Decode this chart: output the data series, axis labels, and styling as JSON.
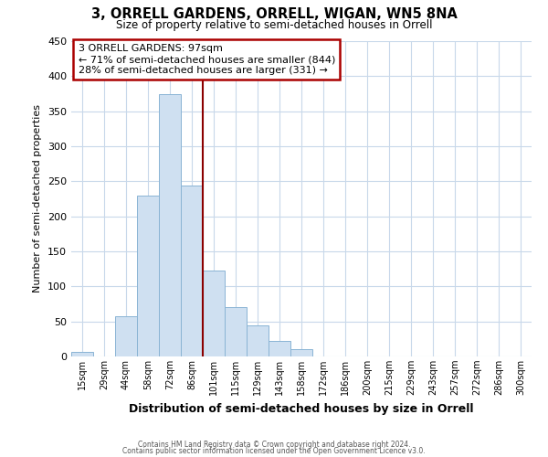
{
  "title": "3, ORRELL GARDENS, ORRELL, WIGAN, WN5 8NA",
  "subtitle": "Size of property relative to semi-detached houses in Orrell",
  "xlabel": "Distribution of semi-detached houses by size in Orrell",
  "ylabel": "Number of semi-detached properties",
  "bar_labels": [
    "15sqm",
    "29sqm",
    "44sqm",
    "58sqm",
    "72sqm",
    "86sqm",
    "101sqm",
    "115sqm",
    "129sqm",
    "143sqm",
    "158sqm",
    "172sqm",
    "186sqm",
    "200sqm",
    "215sqm",
    "229sqm",
    "243sqm",
    "257sqm",
    "272sqm",
    "286sqm",
    "300sqm"
  ],
  "bar_values": [
    7,
    0,
    57,
    229,
    375,
    244,
    122,
    70,
    44,
    22,
    10,
    0,
    0,
    0,
    0,
    0,
    0,
    0,
    0,
    0,
    0
  ],
  "bar_color": "#cfe0f1",
  "bar_edge_color": "#8ab4d4",
  "ylim": [
    0,
    450
  ],
  "yticks": [
    0,
    50,
    100,
    150,
    200,
    250,
    300,
    350,
    400,
    450
  ],
  "property_line_color": "#8B0000",
  "annotation_title": "3 ORRELL GARDENS: 97sqm",
  "annotation_line1": "← 71% of semi-detached houses are smaller (844)",
  "annotation_line2": "28% of semi-detached houses are larger (331) →",
  "annotation_box_color": "#aa0000",
  "footer_line1": "Contains HM Land Registry data © Crown copyright and database right 2024.",
  "footer_line2": "Contains public sector information licensed under the Open Government Licence v3.0.",
  "background_color": "#ffffff",
  "grid_color": "#c8d8ea"
}
